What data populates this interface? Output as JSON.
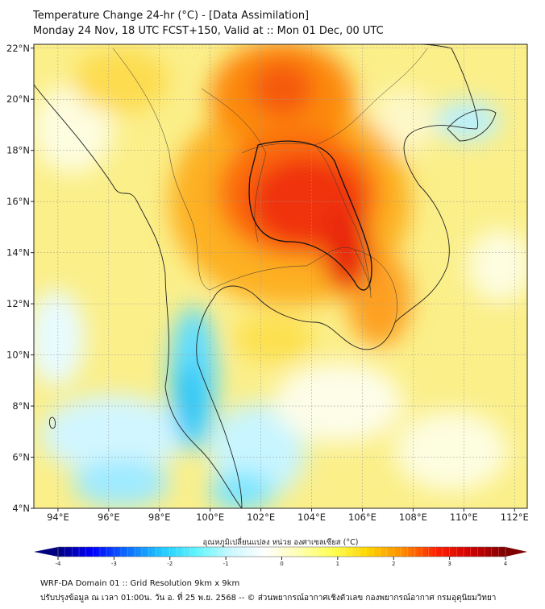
{
  "header": {
    "title": "Temperature Change 24-hr (°C) - [Data Assimilation]",
    "subtitle": "Monday 24 Nov, 18 UTC FCST+150, Valid at :: Mon 01 Dec, 00 UTC"
  },
  "map": {
    "lon_range": [
      93.05,
      112.5
    ],
    "lat_range": [
      4,
      22.15
    ],
    "lon_ticks": [
      {
        "v": 94,
        "label": "94°E"
      },
      {
        "v": 96,
        "label": "96°E"
      },
      {
        "v": 98,
        "label": "98°E"
      },
      {
        "v": 100,
        "label": "100°E"
      },
      {
        "v": 102,
        "label": "102°E"
      },
      {
        "v": 104,
        "label": "104°E"
      },
      {
        "v": 106,
        "label": "106°E"
      },
      {
        "v": 108,
        "label": "108°E"
      },
      {
        "v": 110,
        "label": "110°E"
      },
      {
        "v": 112,
        "label": "112°E"
      }
    ],
    "lat_ticks": [
      {
        "v": 4,
        "label": "4°N"
      },
      {
        "v": 6,
        "label": "6°N"
      },
      {
        "v": 8,
        "label": "8°N"
      },
      {
        "v": 10,
        "label": "10°N"
      },
      {
        "v": 12,
        "label": "12°N"
      },
      {
        "v": 14,
        "label": "14°N"
      },
      {
        "v": 16,
        "label": "16°N"
      },
      {
        "v": 18,
        "label": "18°N"
      },
      {
        "v": 20,
        "label": "20°N"
      },
      {
        "v": 22,
        "label": "22°N"
      }
    ]
  },
  "colorbar": {
    "label": "อุณหภูมิเปลี่ยนแปลง หน่วย องศาเซลเซียส (°C)",
    "min": -4,
    "max": 4,
    "ticks": [
      "-4",
      "-3",
      "-2",
      "-1",
      "0",
      "1",
      "2",
      "3",
      "4"
    ],
    "colors": [
      "#00007f",
      "#0000ff",
      "#0a6cff",
      "#1ec8ff",
      "#5ef4ff",
      "#c8f8ff",
      "#ffffff",
      "#ffffb0",
      "#ffff50",
      "#ffd400",
      "#ff8c00",
      "#ff2000",
      "#d00000",
      "#7f0000"
    ]
  },
  "footer": {
    "line1": "WRF-DA Domain 01 :: Grid Resolution 9km x 9km",
    "line2": "ปรับปรุงข้อมูล ณ เวลา 01:00น. วัน อ. ที่ 25 พ.ย. 2568 -- © ส่วนพยากรณ์อากาศเชิงตัวเลข กองพยากรณ์อากาศ กรมอุตุนิยมวิทยา"
  }
}
